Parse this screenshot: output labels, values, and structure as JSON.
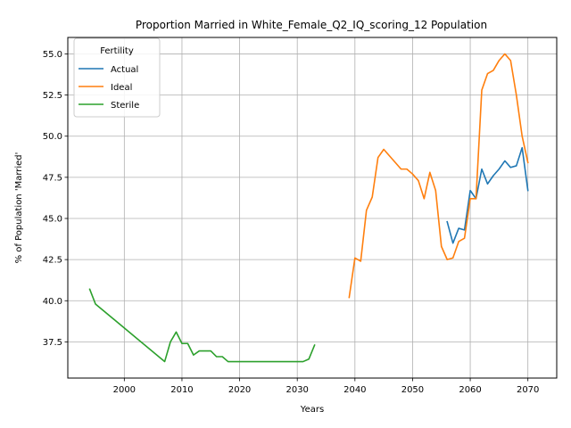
{
  "chart_data": {
    "type": "line",
    "title": "Proportion Married in White_Female_Q2_IQ_scoring_12 Population",
    "xlabel": "Years",
    "ylabel": "% of Population 'Married'",
    "xlim": [
      1990.2,
      2075.0
    ],
    "ylim": [
      35.3,
      56.0
    ],
    "xticks": [
      2000,
      2010,
      2020,
      2030,
      2040,
      2050,
      2060,
      2070
    ],
    "yticks": [
      37.5,
      40.0,
      42.5,
      45.0,
      47.5,
      50.0,
      52.5,
      55.0
    ],
    "ytick_labels": [
      "37.5",
      "40.0",
      "42.5",
      "45.0",
      "47.5",
      "50.0",
      "52.5",
      "55.0"
    ],
    "grid": true,
    "legend": {
      "title": "Fertility",
      "position": "top-left"
    },
    "series": [
      {
        "name": "Actual",
        "color": "#1f77b4",
        "points": [
          [
            2056,
            44.8
          ],
          [
            2057,
            43.5
          ],
          [
            2058,
            44.4
          ],
          [
            2059,
            44.3
          ],
          [
            2060,
            46.7
          ],
          [
            2061,
            46.2
          ],
          [
            2062,
            48.0
          ],
          [
            2063,
            47.1
          ],
          [
            2064,
            47.6
          ],
          [
            2065,
            48.0
          ],
          [
            2066,
            48.5
          ],
          [
            2067,
            48.1
          ],
          [
            2068,
            48.2
          ],
          [
            2069,
            49.3
          ],
          [
            2070,
            46.7
          ]
        ]
      },
      {
        "name": "Ideal",
        "color": "#ff7f0e",
        "points": [
          [
            2039,
            40.2
          ],
          [
            2040,
            42.6
          ],
          [
            2041,
            42.4
          ],
          [
            2042,
            45.5
          ],
          [
            2043,
            46.3
          ],
          [
            2044,
            48.7
          ],
          [
            2045,
            49.2
          ],
          [
            2046,
            48.8
          ],
          [
            2047,
            48.4
          ],
          [
            2048,
            48.0
          ],
          [
            2049,
            48.0
          ],
          [
            2050,
            47.7
          ],
          [
            2051,
            47.3
          ],
          [
            2052,
            46.2
          ],
          [
            2053,
            47.8
          ],
          [
            2054,
            46.7
          ],
          [
            2055,
            43.3
          ],
          [
            2056,
            42.5
          ],
          [
            2057,
            42.6
          ],
          [
            2058,
            43.6
          ],
          [
            2059,
            43.8
          ],
          [
            2060,
            46.2
          ],
          [
            2061,
            46.2
          ],
          [
            2062,
            52.8
          ],
          [
            2063,
            53.8
          ],
          [
            2064,
            54.0
          ],
          [
            2065,
            54.6
          ],
          [
            2066,
            55.0
          ],
          [
            2067,
            54.6
          ],
          [
            2068,
            52.5
          ],
          [
            2069,
            50.0
          ],
          [
            2070,
            48.4
          ]
        ]
      },
      {
        "name": "Sterile",
        "color": "#2ca02c",
        "points": [
          [
            1994,
            40.7
          ],
          [
            1995,
            39.8
          ],
          [
            2007,
            36.3
          ],
          [
            2008,
            37.5
          ],
          [
            2009,
            38.1
          ],
          [
            2010,
            37.4
          ],
          [
            2011,
            37.4
          ],
          [
            2012,
            36.7
          ],
          [
            2013,
            36.95
          ],
          [
            2014,
            36.95
          ],
          [
            2015,
            36.95
          ],
          [
            2016,
            36.6
          ],
          [
            2017,
            36.6
          ],
          [
            2018,
            36.3
          ],
          [
            2019,
            36.3
          ],
          [
            2030,
            36.3
          ],
          [
            2031,
            36.3
          ],
          [
            2032,
            36.45
          ],
          [
            2033,
            37.3
          ]
        ]
      }
    ]
  }
}
